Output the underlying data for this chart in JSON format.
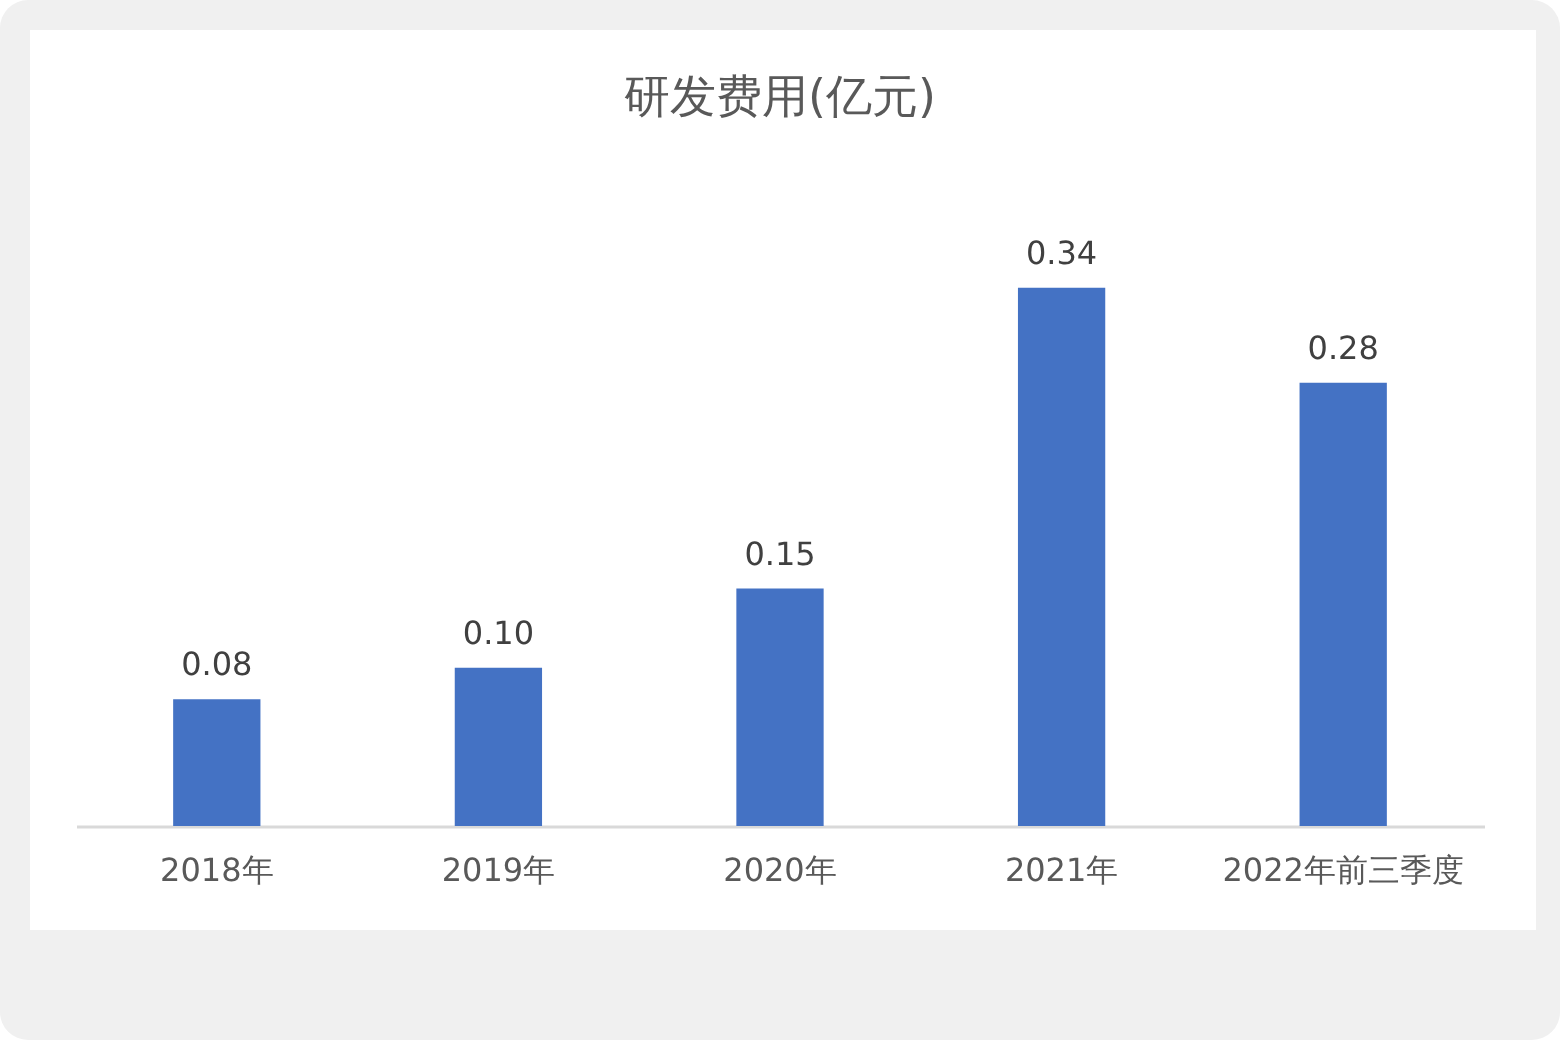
{
  "chart_data": {
    "type": "bar",
    "title": "研发费用(亿元)",
    "categories": [
      "2018年",
      "2019年",
      "2020年",
      "2021年",
      "2022年前三季度"
    ],
    "values": [
      0.08,
      0.1,
      0.15,
      0.34,
      0.28
    ],
    "color": "#4472c4",
    "value_labels": [
      "0.08",
      "0.10",
      "0.15",
      "0.34",
      "0.28"
    ]
  }
}
